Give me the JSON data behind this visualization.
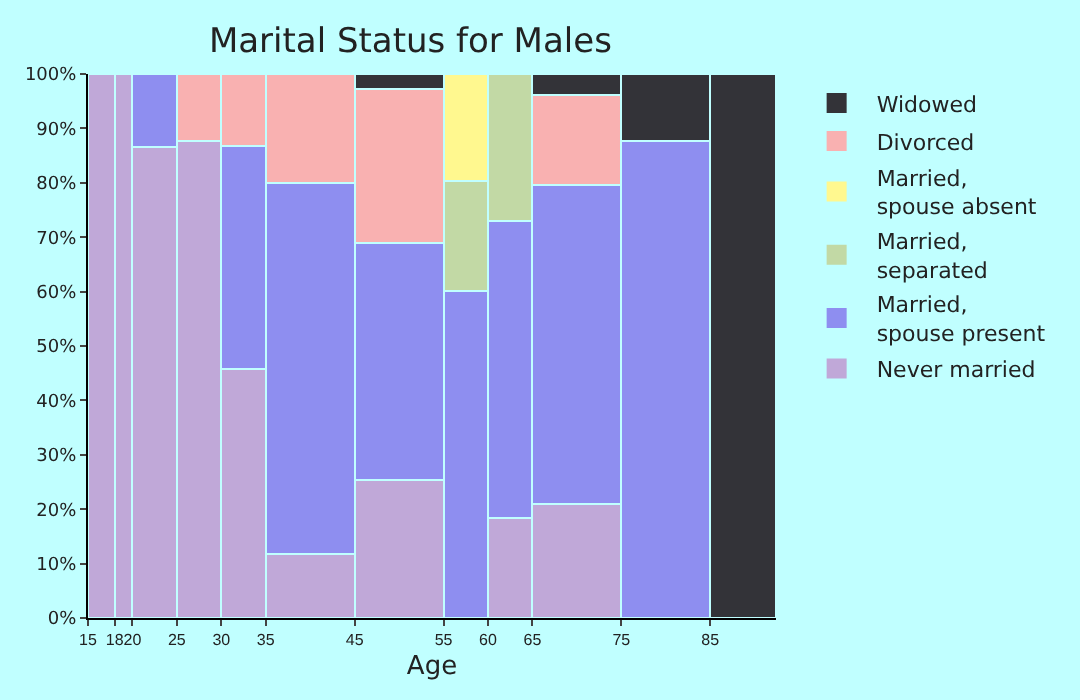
{
  "chart_data": {
    "type": "bar",
    "title": "Marital Status for Males",
    "xlabel": "Age",
    "stacked": true,
    "x": [
      16.5,
      19,
      22.5,
      27.5,
      32.5,
      40,
      50,
      57.5,
      62.5,
      70,
      80,
      88.7
    ],
    "series": [
      {
        "name": "Never married",
        "color": "#c0a8d8",
        "values": [
          100,
          100,
          86.5,
          87.7,
          45.8,
          11.7,
          25.3,
          null,
          18.3,
          20.9,
          null,
          null
        ]
      },
      {
        "name": "Married,\nspouse present",
        "color": "#8e8ef0",
        "values": [
          null,
          null,
          13.5,
          null,
          40.9,
          68.3,
          43.7,
          60.1,
          54.7,
          58.7,
          87.7,
          null
        ]
      },
      {
        "name": "Married,\nseparated",
        "color": "#c2d9a5",
        "values": [
          null,
          null,
          null,
          null,
          null,
          null,
          null,
          20.2,
          27,
          null,
          null,
          null
        ]
      },
      {
        "name": "Married,\nspouse absent",
        "color": "#fff88f",
        "values": [
          null,
          null,
          null,
          null,
          null,
          null,
          null,
          19.7,
          null,
          null,
          null,
          null
        ]
      },
      {
        "name": "Divorced",
        "color": "#f9b1b1",
        "values": [
          null,
          null,
          null,
          12.3,
          13.3,
          20,
          28.2,
          null,
          null,
          16.6,
          null,
          null
        ]
      },
      {
        "name": "Widowed",
        "color": "#333338",
        "values": [
          null,
          null,
          null,
          null,
          null,
          null,
          2.8,
          null,
          null,
          3.8,
          12.3,
          100
        ]
      }
    ],
    "xlim": [
      15,
      92.4
    ],
    "xticks": [
      15,
      18,
      20,
      25,
      30,
      35,
      45,
      55,
      60,
      65,
      75,
      85
    ],
    "ylim": [
      0,
      100
    ],
    "yticks": [
      {
        "value": 0,
        "label": "0%"
      },
      {
        "value": 10,
        "label": "10%"
      },
      {
        "value": 20,
        "label": "20%"
      },
      {
        "value": 30,
        "label": "30%"
      },
      {
        "value": 40,
        "label": "40%"
      },
      {
        "value": 50,
        "label": "50%"
      },
      {
        "value": 60,
        "label": "60%"
      },
      {
        "value": 70,
        "label": "70%"
      },
      {
        "value": 80,
        "label": "80%"
      },
      {
        "value": 90,
        "label": "90%"
      },
      {
        "value": 100,
        "label": "100%"
      }
    ],
    "legend": "right"
  }
}
